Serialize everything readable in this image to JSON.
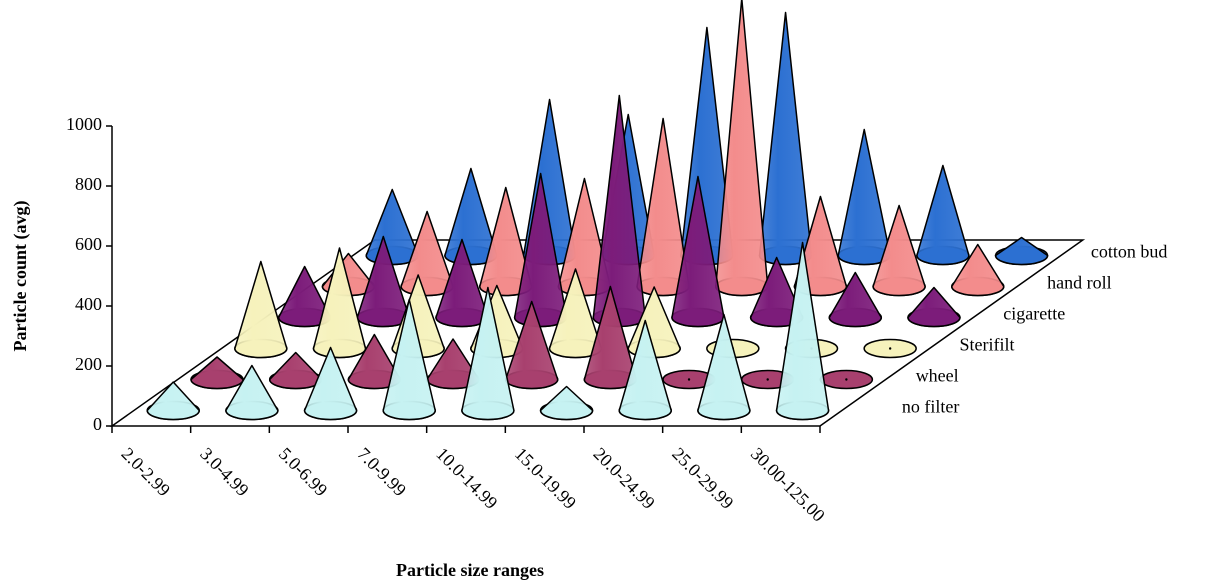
{
  "chart_data": {
    "type": "cone3d",
    "x_label": "Particle size ranges",
    "y_label": "Particle count (avg)",
    "categories": [
      "2.0-2.99",
      "3.0-4.99",
      "5.0-6.99",
      "7.0-9.99",
      "10.0-14.99",
      "15.0-19.99",
      "20.0-24.99",
      "25.0-29.99",
      "30.00-125.00"
    ],
    "ylim": [
      0,
      1000
    ],
    "yticks": [
      0,
      200,
      400,
      600,
      800,
      1000
    ],
    "series": [
      {
        "name": "no filter",
        "color": "#c6f2f2",
        "values": [
          95,
          150,
          210,
          370,
          410,
          80,
          300,
          320,
          560
        ]
      },
      {
        "name": "wheel",
        "color": "#a8406e",
        "values": [
          75,
          90,
          150,
          135,
          260,
          310,
          5,
          5,
          5
        ]
      },
      {
        "name": "Sterifilt",
        "color": "#f6f2bc",
        "values": [
          290,
          335,
          245,
          210,
          265,
          205,
          10,
          10,
          10
        ]
      },
      {
        "name": "cigarette",
        "color": "#7c1c7a",
        "values": [
          170,
          270,
          260,
          480,
          740,
          470,
          200,
          150,
          100
        ]
      },
      {
        "name": "hand roll",
        "color": "#f38c8c",
        "values": [
          110,
          250,
          330,
          360,
          560,
          960,
          300,
          270,
          140
        ]
      },
      {
        "name": "cotton bud",
        "color": "#2c70d2",
        "values": [
          220,
          290,
          520,
          470,
          760,
          810,
          420,
          300,
          60
        ]
      }
    ]
  }
}
